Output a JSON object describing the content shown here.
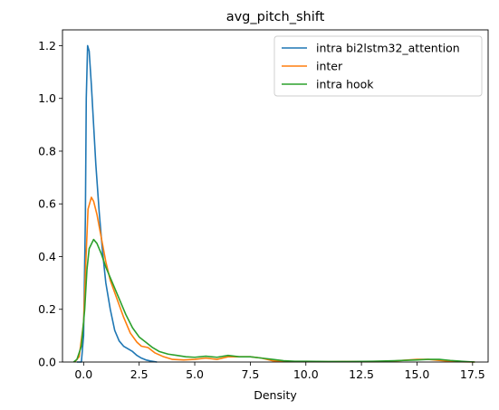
{
  "chart_data": {
    "type": "line",
    "title": "avg_pitch_shift",
    "xlabel": "Density",
    "ylabel": "",
    "xlim": [
      -0.95,
      18.2
    ],
    "ylim": [
      0,
      1.26
    ],
    "xticks": [
      0.0,
      2.5,
      5.0,
      7.5,
      10.0,
      12.5,
      15.0,
      17.5
    ],
    "xtick_labels": [
      "0.0",
      "2.5",
      "5.0",
      "7.5",
      "10.0",
      "12.5",
      "15.0",
      "17.5"
    ],
    "yticks": [
      0.0,
      0.2,
      0.4,
      0.6,
      0.8,
      1.0,
      1.2
    ],
    "ytick_labels": [
      "0.0",
      "0.2",
      "0.4",
      "0.6",
      "0.8",
      "1.0",
      "1.2"
    ],
    "grid": false,
    "legend_position": "top-right",
    "series": [
      {
        "name": "intra bi2lstm32_attention",
        "color": "#1f77b4",
        "points": [
          [
            -0.3,
            0
          ],
          [
            -0.1,
            0.0
          ],
          [
            0.0,
            0.1
          ],
          [
            0.08,
            0.55
          ],
          [
            0.12,
            1.0
          ],
          [
            0.18,
            1.2
          ],
          [
            0.25,
            1.18
          ],
          [
            0.35,
            1.05
          ],
          [
            0.45,
            0.9
          ],
          [
            0.55,
            0.75
          ],
          [
            0.7,
            0.57
          ],
          [
            0.85,
            0.42
          ],
          [
            1.0,
            0.3
          ],
          [
            1.2,
            0.2
          ],
          [
            1.4,
            0.12
          ],
          [
            1.6,
            0.08
          ],
          [
            1.8,
            0.06
          ],
          [
            2.0,
            0.05
          ],
          [
            2.2,
            0.04
          ],
          [
            2.4,
            0.025
          ],
          [
            2.6,
            0.015
          ],
          [
            2.8,
            0.008
          ],
          [
            3.0,
            0.004
          ],
          [
            3.3,
            0.0
          ]
        ]
      },
      {
        "name": "inter",
        "color": "#ff7f0e",
        "points": [
          [
            -0.4,
            0.0
          ],
          [
            -0.2,
            0.02
          ],
          [
            0.0,
            0.15
          ],
          [
            0.1,
            0.38
          ],
          [
            0.2,
            0.58
          ],
          [
            0.35,
            0.625
          ],
          [
            0.45,
            0.61
          ],
          [
            0.6,
            0.56
          ],
          [
            0.8,
            0.47
          ],
          [
            1.0,
            0.38
          ],
          [
            1.2,
            0.31
          ],
          [
            1.5,
            0.24
          ],
          [
            1.8,
            0.17
          ],
          [
            2.1,
            0.11
          ],
          [
            2.4,
            0.075
          ],
          [
            2.6,
            0.06
          ],
          [
            2.9,
            0.055
          ],
          [
            3.2,
            0.035
          ],
          [
            3.6,
            0.02
          ],
          [
            4.0,
            0.01
          ],
          [
            4.5,
            0.008
          ],
          [
            5.0,
            0.01
          ],
          [
            5.5,
            0.015
          ],
          [
            6.0,
            0.01
          ],
          [
            6.5,
            0.02
          ],
          [
            7.0,
            0.02
          ],
          [
            7.5,
            0.02
          ],
          [
            8.0,
            0.015
          ],
          [
            8.5,
            0.005
          ],
          [
            9.0,
            0.002
          ],
          [
            10.0,
            0.002
          ],
          [
            11.0,
            0.001
          ],
          [
            12.0,
            0.002
          ],
          [
            13.0,
            0.001
          ],
          [
            14.0,
            0.004
          ],
          [
            15.0,
            0.01
          ],
          [
            15.5,
            0.01
          ],
          [
            16.0,
            0.006
          ],
          [
            16.5,
            0.003
          ],
          [
            17.0,
            0.001
          ],
          [
            17.6,
            0.0
          ]
        ]
      },
      {
        "name": "intra hook",
        "color": "#2ca02c",
        "points": [
          [
            -0.45,
            0.0
          ],
          [
            -0.3,
            0.01
          ],
          [
            -0.1,
            0.06
          ],
          [
            0.05,
            0.2
          ],
          [
            0.15,
            0.35
          ],
          [
            0.25,
            0.43
          ],
          [
            0.45,
            0.465
          ],
          [
            0.6,
            0.45
          ],
          [
            0.8,
            0.41
          ],
          [
            1.0,
            0.36
          ],
          [
            1.3,
            0.3
          ],
          [
            1.6,
            0.24
          ],
          [
            1.9,
            0.18
          ],
          [
            2.2,
            0.13
          ],
          [
            2.5,
            0.095
          ],
          [
            2.8,
            0.075
          ],
          [
            3.1,
            0.055
          ],
          [
            3.4,
            0.04
          ],
          [
            3.8,
            0.03
          ],
          [
            4.2,
            0.025
          ],
          [
            4.6,
            0.02
          ],
          [
            5.0,
            0.018
          ],
          [
            5.5,
            0.022
          ],
          [
            6.0,
            0.018
          ],
          [
            6.5,
            0.025
          ],
          [
            7.0,
            0.02
          ],
          [
            7.5,
            0.02
          ],
          [
            8.0,
            0.015
          ],
          [
            8.5,
            0.01
          ],
          [
            9.0,
            0.005
          ],
          [
            9.5,
            0.003
          ],
          [
            10.0,
            0.003
          ],
          [
            11.0,
            0.002
          ],
          [
            12.0,
            0.002
          ],
          [
            13.0,
            0.003
          ],
          [
            14.0,
            0.005
          ],
          [
            15.0,
            0.008
          ],
          [
            15.5,
            0.01
          ],
          [
            16.0,
            0.01
          ],
          [
            16.5,
            0.006
          ],
          [
            17.0,
            0.003
          ],
          [
            17.6,
            0.0
          ]
        ]
      }
    ]
  }
}
